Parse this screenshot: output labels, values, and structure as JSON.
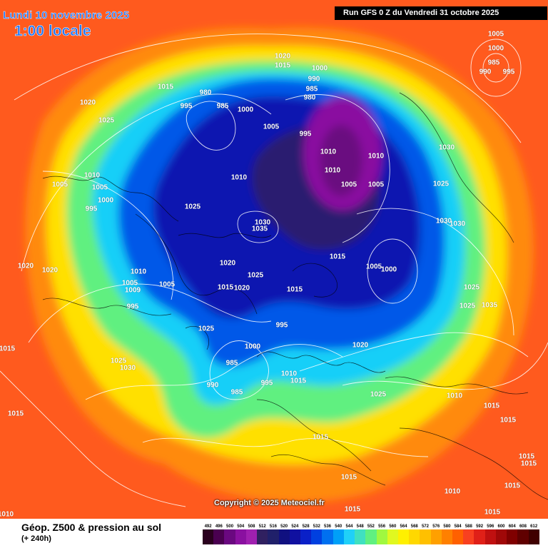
{
  "header": {
    "forecast_date": "Lundi 10 novembre 2025",
    "local_time": "1:00 locale",
    "run_info": "Run GFS 0 Z du Vendredi 31 octobre 2025"
  },
  "footer": {
    "variable_title": "Géop. Z500 & pression au sol",
    "lead_time": "(+ 240h)",
    "copyright": "Copyright © 2025 Meteociel.fr"
  },
  "legend": {
    "values": [
      "492",
      "496",
      "500",
      "504",
      "508",
      "512",
      "516",
      "520",
      "524",
      "528",
      "532",
      "536",
      "540",
      "544",
      "548",
      "552",
      "556",
      "560",
      "564",
      "568",
      "572",
      "576",
      "580",
      "584",
      "588",
      "592",
      "596",
      "600",
      "604",
      "608",
      "612"
    ],
    "colors": [
      "#2a001e",
      "#4a0050",
      "#6a0880",
      "#8a10a0",
      "#a020b0",
      "#302060",
      "#20206a",
      "#101080",
      "#1010a0",
      "#0a20c8",
      "#0040e0",
      "#0070f0",
      "#00a0f8",
      "#20d0f8",
      "#40e0c0",
      "#60f080",
      "#a0f840",
      "#e0f820",
      "#fff000",
      "#ffd800",
      "#ffc000",
      "#ffa000",
      "#ff8000",
      "#ff6000",
      "#f84020",
      "#e02018",
      "#c01010",
      "#a00808",
      "#800000",
      "#600000",
      "#400000"
    ]
  },
  "map_fill": {
    "outer": "#ff5a1e",
    "ring_orange": "#ff8a0c",
    "ring_yellow": "#ffe000",
    "ring_green": "#60f080",
    "ring_cyan": "#18cff8",
    "ring_blue": "#0058e8",
    "core_navy": "#0a18b0",
    "polar_dark": "#2a1a70",
    "low_purple": "#8a10a0",
    "low_magenta": "#6a0880"
  },
  "isobar_labels": [
    "1005",
    "1000",
    "985",
    "990",
    "995",
    "1020",
    "1015",
    "1000",
    "990",
    "985",
    "980",
    "1015",
    "1020",
    "1025",
    "980",
    "995",
    "985",
    "1000",
    "1005",
    "995",
    "1010",
    "1010",
    "1010",
    "1005",
    "1005",
    "1030",
    "1010",
    "1000",
    "1005",
    "995",
    "1010",
    "1005",
    "1025",
    "1025",
    "1030",
    "1030",
    "1030",
    "1035",
    "1020",
    "1020",
    "1015",
    "1005",
    "1000",
    "1025",
    "1020",
    "1010",
    "1005",
    "1009",
    "1005",
    "995",
    "1020",
    "1015",
    "1025",
    "1015",
    "1025",
    "1035",
    "1025",
    "1030",
    "1000",
    "985",
    "990",
    "985",
    "995",
    "1010",
    "1015",
    "1020",
    "1025",
    "995",
    "1025",
    "1015",
    "1015",
    "1015",
    "1010",
    "1015",
    "1015",
    "1015",
    "1010",
    "1015",
    "1015",
    "1015",
    "1015",
    "1015",
    "1010"
  ]
}
